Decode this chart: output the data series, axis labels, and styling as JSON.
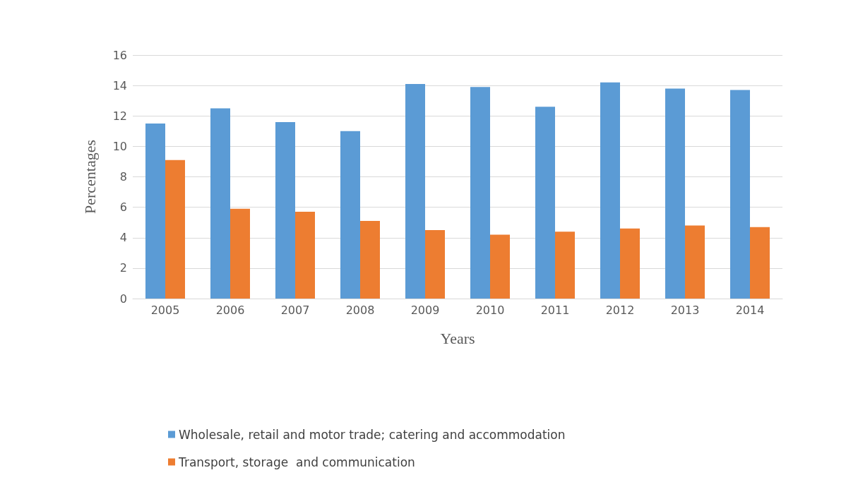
{
  "chart_data": {
    "type": "bar",
    "xlabel": "Years",
    "ylabel": "Percentages",
    "categories": [
      "2005",
      "2006",
      "2007",
      "2008",
      "2009",
      "2010",
      "2011",
      "2012",
      "2013",
      "2014"
    ],
    "series": [
      {
        "name": "Wholesale, retail and motor trade; catering and accommodation",
        "color": "#5b9bd5",
        "values": [
          11.5,
          12.5,
          11.6,
          11.0,
          14.1,
          13.9,
          12.6,
          14.2,
          13.8,
          13.7
        ]
      },
      {
        "name": "Transport, storage  and communication",
        "color": "#ed7d31",
        "values": [
          9.1,
          5.9,
          5.7,
          5.1,
          4.5,
          4.2,
          4.4,
          4.6,
          4.8,
          4.7
        ]
      }
    ],
    "ylim": [
      0,
      16
    ],
    "yticks": [
      0,
      2,
      4,
      6,
      8,
      10,
      12,
      14,
      16
    ],
    "grid": "y",
    "legend": "bottom"
  }
}
